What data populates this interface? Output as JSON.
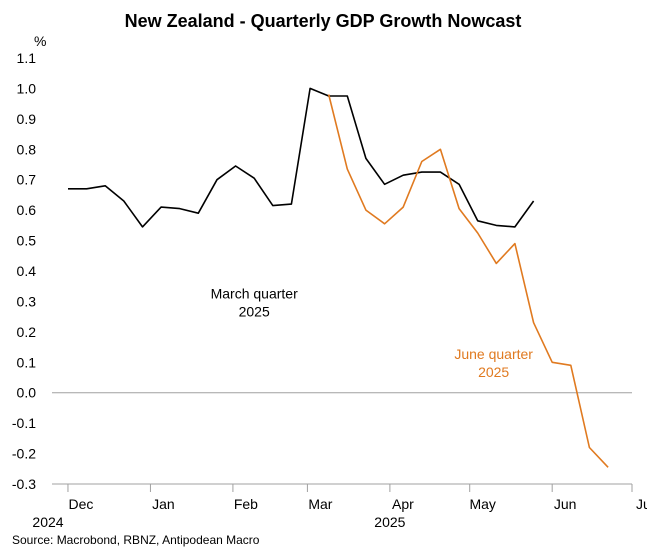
{
  "chart_data": {
    "type": "line",
    "title": "New Zealand - Quarterly GDP Growth Nowcast",
    "ylabel": "%",
    "ylim": [
      -0.3,
      1.1
    ],
    "yticks": [
      1.1,
      1.0,
      0.9,
      0.8,
      0.7,
      0.6,
      0.5,
      0.4,
      0.3,
      0.2,
      0.1,
      0.0,
      -0.1,
      -0.2,
      -0.3
    ],
    "ytick_labels": [
      "1.1",
      "1.0",
      "0.9",
      "0.8",
      "0.7",
      "0.6",
      "0.5",
      "0.4",
      "0.3",
      "0.2",
      "0.1",
      "0.0",
      "-0.1",
      "-0.2",
      "-0.3"
    ],
    "xlim": [
      "2024-11-25",
      "2025-07-01"
    ],
    "xticks": [
      {
        "label": "Dec",
        "date": "2024-12-01"
      },
      {
        "label": "Jan",
        "date": "2025-01-01"
      },
      {
        "label": "Feb",
        "date": "2025-02-01"
      },
      {
        "label": "Mar",
        "date": "2025-03-01"
      },
      {
        "label": "Apr",
        "date": "2025-04-01"
      },
      {
        "label": "May",
        "date": "2025-05-01"
      },
      {
        "label": "Jun",
        "date": "2025-06-01"
      },
      {
        "label": "Jul",
        "date": "2025-07-01"
      }
    ],
    "year_labels": [
      {
        "label": "2024",
        "date": "2024-11-25"
      },
      {
        "label": "2025",
        "date": "2025-04-01"
      }
    ],
    "grid": false,
    "series": [
      {
        "name": "March quarter 2025",
        "color": "#000000",
        "points": [
          {
            "x": "2024-12-01",
            "y": 0.67
          },
          {
            "x": "2024-12-08",
            "y": 0.67
          },
          {
            "x": "2024-12-15",
            "y": 0.68
          },
          {
            "x": "2024-12-22",
            "y": 0.63
          },
          {
            "x": "2024-12-29",
            "y": 0.545
          },
          {
            "x": "2025-01-05",
            "y": 0.61
          },
          {
            "x": "2025-01-12",
            "y": 0.605
          },
          {
            "x": "2025-01-19",
            "y": 0.59
          },
          {
            "x": "2025-01-26",
            "y": 0.7
          },
          {
            "x": "2025-02-02",
            "y": 0.745
          },
          {
            "x": "2025-02-09",
            "y": 0.705
          },
          {
            "x": "2025-02-16",
            "y": 0.615
          },
          {
            "x": "2025-02-23",
            "y": 0.62
          },
          {
            "x": "2025-03-02",
            "y": 1.0
          },
          {
            "x": "2025-03-09",
            "y": 0.975
          },
          {
            "x": "2025-03-16",
            "y": 0.975
          },
          {
            "x": "2025-03-23",
            "y": 0.77
          },
          {
            "x": "2025-03-30",
            "y": 0.685
          },
          {
            "x": "2025-04-06",
            "y": 0.715
          },
          {
            "x": "2025-04-13",
            "y": 0.725
          },
          {
            "x": "2025-04-20",
            "y": 0.725
          },
          {
            "x": "2025-04-27",
            "y": 0.685
          },
          {
            "x": "2025-05-04",
            "y": 0.565
          },
          {
            "x": "2025-05-11",
            "y": 0.55
          },
          {
            "x": "2025-05-18",
            "y": 0.545
          },
          {
            "x": "2025-05-25",
            "y": 0.63
          }
        ]
      },
      {
        "name": "June quarter 2025",
        "color": "#e07a20",
        "points": [
          {
            "x": "2025-03-09",
            "y": 0.98
          },
          {
            "x": "2025-03-16",
            "y": 0.735
          },
          {
            "x": "2025-03-23",
            "y": 0.6
          },
          {
            "x": "2025-03-30",
            "y": 0.555
          },
          {
            "x": "2025-04-06",
            "y": 0.61
          },
          {
            "x": "2025-04-13",
            "y": 0.76
          },
          {
            "x": "2025-04-20",
            "y": 0.8
          },
          {
            "x": "2025-04-27",
            "y": 0.605
          },
          {
            "x": "2025-05-04",
            "y": 0.525
          },
          {
            "x": "2025-05-11",
            "y": 0.425
          },
          {
            "x": "2025-05-18",
            "y": 0.49
          },
          {
            "x": "2025-05-25",
            "y": 0.23
          },
          {
            "x": "2025-06-01",
            "y": 0.1
          },
          {
            "x": "2025-06-08",
            "y": 0.09
          },
          {
            "x": "2025-06-15",
            "y": -0.18
          },
          {
            "x": "2025-06-22",
            "y": -0.245
          }
        ]
      }
    ],
    "annotations": [
      {
        "lines": [
          "March quarter",
          "2025"
        ],
        "color": "#000000",
        "x": "2025-02-09",
        "y": 0.31
      },
      {
        "lines": [
          "June quarter",
          "2025"
        ],
        "color": "#e07a20",
        "x": "2025-05-10",
        "y": 0.11
      }
    ]
  },
  "source": "Source: Macrobond, RBNZ, Antipodean Macro"
}
